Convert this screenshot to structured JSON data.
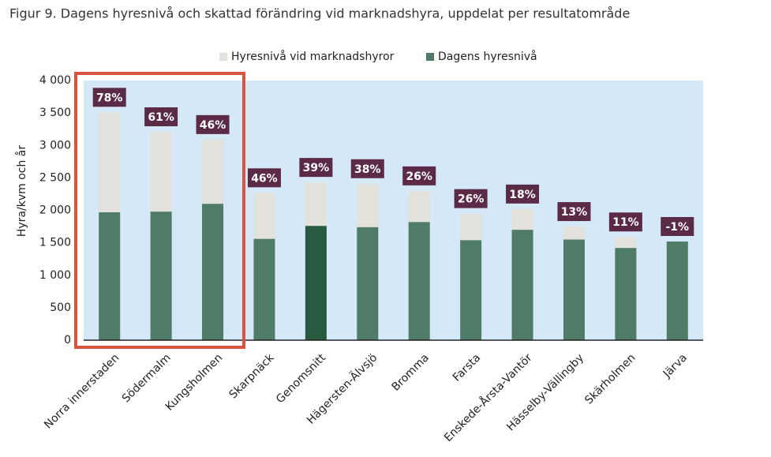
{
  "chart_data": {
    "type": "bar",
    "title": "Figur 9. Dagens hyresnivå och skattad förändring vid marknadshyra, uppdelat per resultatområde",
    "y_label": "Hyra/kvm och år",
    "categories": [
      "Norra innerstaden",
      "Södermalm",
      "Kungsholmen",
      "Skarpnäck",
      "Genomsnitt",
      "Hägersten-Älvsjö",
      "Bromma",
      "Farsta",
      "Enskede-Årsta-Vantör",
      "Hässelby-Vällingby",
      "Skärholmen",
      "Järva"
    ],
    "series": [
      {
        "name": "Hyresnivå vid marknadshyror",
        "color": "#e3e1dc",
        "values": [
          3510,
          3210,
          3090,
          2270,
          2430,
          2410,
          2300,
          1950,
          2020,
          1750,
          1590,
          1505
        ]
      },
      {
        "name": "Dagens hyresnivå",
        "color": "#4f7b69",
        "highlight_color": "#285a40",
        "highlight_index": 4,
        "values": [
          1970,
          1980,
          2100,
          1560,
          1760,
          1740,
          1820,
          1540,
          1700,
          1550,
          1420,
          1520
        ]
      }
    ],
    "change": {
      "color": "#5b2a47",
      "values": [
        78,
        61,
        46,
        46,
        39,
        38,
        26,
        26,
        18,
        13,
        11,
        -1
      ],
      "value_labels": [
        "78%",
        "61%",
        "46%",
        "46%",
        "39%",
        "38%",
        "26%",
        "26%",
        "18%",
        "13%",
        "11%",
        "-1%"
      ]
    },
    "ylim": [
      0,
      4000
    ],
    "yticks": [
      0,
      500,
      {
        "value": 1000,
        "label": "1 000"
      },
      {
        "value": 1500,
        "label": "1 500"
      },
      {
        "value": 2000,
        "label": "2 000"
      },
      {
        "value": 2500,
        "label": "2 500"
      },
      {
        "value": 3000,
        "label": "3 000"
      },
      {
        "value": 3500,
        "label": "3 500"
      },
      {
        "value": 4000,
        "label": "4 000"
      }
    ],
    "plot_background": "#d4e8f8",
    "legend": "top"
  }
}
